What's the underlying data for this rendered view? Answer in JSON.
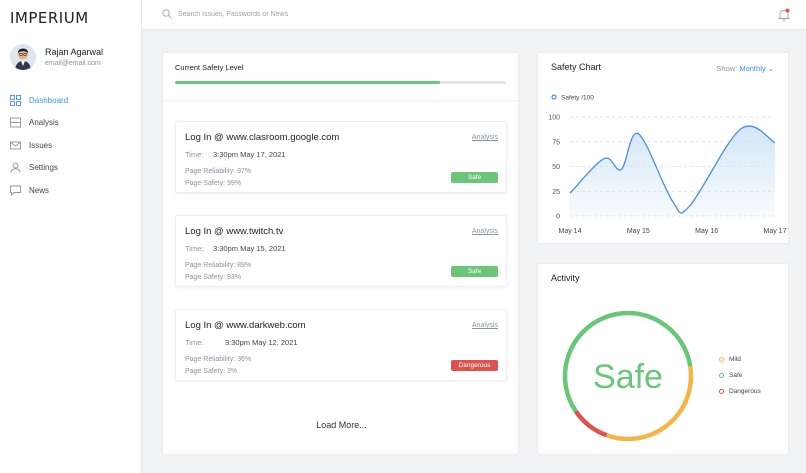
{
  "app": {
    "title": "IMPERIUM"
  },
  "user": {
    "name": "Rajan Agarwal",
    "email": "email@email.com"
  },
  "nav": [
    {
      "label": "Dashboard",
      "icon": "dashboard-icon",
      "active": true
    },
    {
      "label": "Analysis",
      "icon": "analysis-icon",
      "active": false
    },
    {
      "label": "Issues",
      "icon": "mail-icon",
      "active": false
    },
    {
      "label": "Settings",
      "icon": "user-icon",
      "active": false
    },
    {
      "label": "News",
      "icon": "chat-icon",
      "active": false
    }
  ],
  "search": {
    "placeholder": "Search Issues, Passwords or News"
  },
  "safety": {
    "title": "Current Safety Level",
    "level": 0.8
  },
  "entries": [
    {
      "title": "Log In @ www.clasroom.google.com",
      "link": "Analysis",
      "time_label": "Time:",
      "time": "3:30pm May 17, 2021",
      "reliability": "Page Reliability: 97%",
      "safety": "Page Safety: 99%",
      "status": "Safe"
    },
    {
      "title": "Log In @ www.twitch.tv",
      "link": "Analysis",
      "time_label": "Time:",
      "time": "3:30pm May 15, 2021",
      "reliability": "Page Reliability: 89%",
      "safety": "Page Safety: 93%",
      "status": "Safe"
    },
    {
      "title": "Log In @ www.darkweb.com",
      "link": "Analysis",
      "time_label": "Time:",
      "time": "3:30pm May 12, 2021",
      "reliability": "Page Reliability: 36%",
      "safety": "Page Safety: 3%",
      "status": "Dangerous"
    }
  ],
  "load_more": "Load More...",
  "safety_chart": {
    "title": "Safety Chart",
    "show_label": "Show:",
    "show_value": "Monthly"
  },
  "chart_data": {
    "type": "area",
    "series": [
      {
        "name": "Safety /100",
        "points": [
          {
            "x": 0.0,
            "y": 23
          },
          {
            "x": 0.5,
            "y": 58
          },
          {
            "x": 0.75,
            "y": 47
          },
          {
            "x": 1.0,
            "y": 83
          },
          {
            "x": 1.5,
            "y": 15
          },
          {
            "x": 1.75,
            "y": 10
          },
          {
            "x": 2.5,
            "y": 88
          },
          {
            "x": 3.0,
            "y": 74
          }
        ]
      }
    ],
    "x_ticks": [
      "May 14",
      "May 15",
      "May 16",
      "May 17"
    ],
    "y_ticks": [
      0,
      25,
      50,
      75,
      100
    ],
    "ylim": [
      0,
      100
    ],
    "grid": true,
    "legend": "top-left",
    "colors": {
      "line": "#4a90d9",
      "fill": "#cfe3f7"
    }
  },
  "activity": {
    "title": "Activity",
    "center_label": "Safe",
    "segments": [
      {
        "name": "Mild",
        "value": 33,
        "color": "#f0b64b"
      },
      {
        "name": "Safe",
        "value": 57,
        "color": "#6cc47a"
      },
      {
        "name": "Dangerous",
        "value": 10,
        "color": "#d9534f"
      }
    ]
  },
  "colors": {
    "accent": "#4a90d9",
    "safe": "#6cc47a",
    "danger": "#d9534f",
    "mild": "#f0b64b"
  }
}
